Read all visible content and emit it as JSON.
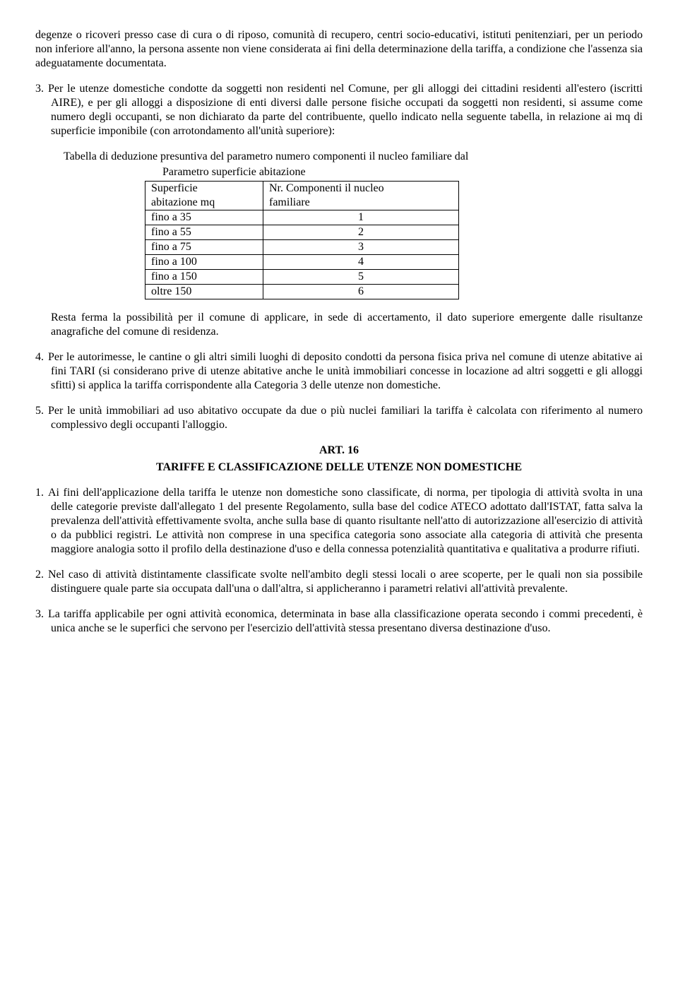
{
  "p_top": "degenze o ricoveri presso case di cura o di riposo, comunità di recupero, centri socio-educativi, istituti penitenziari, per un periodo non inferiore all'anno, la persona assente non viene considerata ai fini della determinazione della tariffa, a condizione che l'assenza sia adeguatamente documentata.",
  "item3": {
    "num": "3.",
    "text": "Per le utenze domestiche condotte da soggetti non residenti nel Comune, per gli alloggi dei cittadini residenti all'estero (iscritti AIRE), e per gli alloggi a disposizione di enti diversi dalle persone fisiche occupati da soggetti non residenti, si assume come numero degli occupanti, se non dichiarato da parte del contribuente, quello indicato nella seguente tabella, in relazione ai mq di superficie imponibile (con arrotondamento all'unità superiore):"
  },
  "table": {
    "title": "Tabella di deduzione presuntiva del parametro numero componenti il nucleo familiare dal",
    "subtitle": "Parametro superficie abitazione",
    "header_col1_line1": "Superficie",
    "header_col1_line2": "abitazione mq",
    "header_col2_line1": "Nr. Componenti il nucleo",
    "header_col2_line2": "familiare",
    "rows": [
      {
        "surf": "fino a 35",
        "comp": "1"
      },
      {
        "surf": "fino a 55",
        "comp": "2"
      },
      {
        "surf": "fino a 75",
        "comp": "3"
      },
      {
        "surf": "fino a 100",
        "comp": "4"
      },
      {
        "surf": "fino a 150",
        "comp": "5"
      },
      {
        "surf": "oltre 150",
        "comp": "6"
      }
    ]
  },
  "p_after_table": "Resta ferma la possibilità per il comune di applicare, in sede di accertamento, il dato superiore emergente dalle risultanze anagrafiche del comune di residenza.",
  "item4": {
    "num": "4.",
    "text": "Per le autorimesse, le cantine o gli altri simili luoghi di deposito condotti da persona fisica priva nel comune di utenze abitative ai fini TARI (si considerano prive di utenze abitative anche le unità immobiliari concesse in locazione ad altri soggetti e gli alloggi sfitti) si applica la tariffa corrispondente alla Categoria 3 delle utenze non domestiche."
  },
  "item5": {
    "num": "5.",
    "text": "Per le unità immobiliari ad uso abitativo occupate da due o più nuclei familiari la tariffa è calcolata con riferimento al numero complessivo degli occupanti l'alloggio."
  },
  "article": {
    "num": "ART. 16",
    "title": "TARIFFE E CLASSIFICAZIONE DELLE UTENZE NON DOMESTICHE"
  },
  "item1b": {
    "num": "1.",
    "text": "Ai fini dell'applicazione della tariffa le utenze non domestiche sono classificate, di norma, per tipologia di attività svolta in una delle categorie previste dall'allegato 1 del presente Regolamento, sulla base del codice ATECO adottato dall'ISTAT, fatta salva la prevalenza dell'attività effettivamente svolta, anche sulla base di quanto risultante nell'atto di autorizzazione all'esercizio di attività o da pubblici registri. Le attività non comprese in una specifica categoria sono associate alla categoria di attività che presenta maggiore analogia sotto il profilo della destinazione d'uso e della connessa potenzialità quantitativa e qualitativa a produrre rifiuti."
  },
  "item2b": {
    "num": "2.",
    "text": "Nel caso di attività distintamente classificate svolte nell'ambito degli stessi locali o aree scoperte, per le quali non sia possibile distinguere quale parte sia occupata dall'una o dall'altra, si applicheranno i parametri relativi all'attività prevalente."
  },
  "item3b": {
    "num": "3.",
    "text": "La tariffa applicabile per ogni attività economica, determinata in base alla classificazione operata secondo i commi precedenti, è unica anche se le superfici che servono per l'esercizio dell'attività stessa presentano diversa destinazione d'uso."
  }
}
